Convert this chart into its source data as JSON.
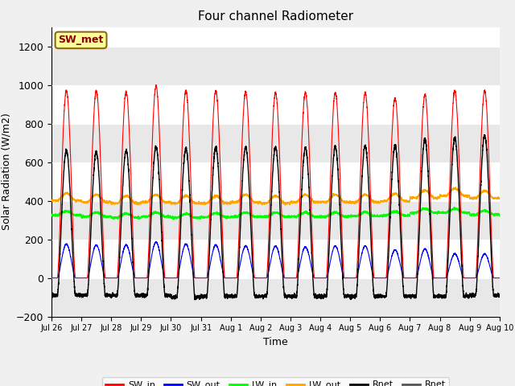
{
  "title": "Four channel Radiometer",
  "xlabel": "Time",
  "ylabel": "Solar Radiation (W/m2)",
  "ylim": [
    -200,
    1300
  ],
  "yticks": [
    -200,
    0,
    200,
    400,
    600,
    800,
    1000,
    1200
  ],
  "x_tick_labels": [
    "Jul 26",
    "Jul 27",
    "Jul 28",
    "Jul 29",
    "Jul 30",
    "Jul 31",
    "Aug 1",
    "Aug 2",
    "Aug 3",
    "Aug 4",
    "Aug 5",
    "Aug 6",
    "Aug 7",
    "Aug 8",
    "Aug 9",
    "Aug 10"
  ],
  "background_color": "#f0f0f0",
  "plot_bg": "#ffffff",
  "annotation_text": "SW_met",
  "annotation_bg": "#ffff99",
  "annotation_border": "#8B6914",
  "n_days": 15,
  "sw_in_peaks": [
    970,
    970,
    965,
    995,
    970,
    970,
    965,
    960,
    960,
    960,
    960,
    930,
    950,
    970,
    970
  ],
  "sw_out_peaks": [
    175,
    170,
    170,
    185,
    175,
    170,
    165,
    165,
    160,
    165,
    165,
    145,
    150,
    125,
    125
  ],
  "rnet_peaks": [
    660,
    650,
    660,
    680,
    670,
    675,
    678,
    678,
    675,
    678,
    685,
    685,
    720,
    725,
    740
  ],
  "rnet_nights": [
    -90,
    -90,
    -90,
    -90,
    -100,
    -95,
    -95,
    -95,
    -95,
    -95,
    -95,
    -95,
    -95,
    -95,
    -90
  ],
  "lw_out_vals": [
    400,
    393,
    387,
    393,
    387,
    387,
    393,
    387,
    393,
    393,
    393,
    398,
    415,
    425,
    413
  ],
  "lw_in_vals": [
    325,
    318,
    312,
    318,
    312,
    315,
    318,
    318,
    318,
    318,
    320,
    323,
    338,
    338,
    328
  ],
  "day_start": 0.2,
  "day_end": 0.8,
  "pts_per_day": 288
}
